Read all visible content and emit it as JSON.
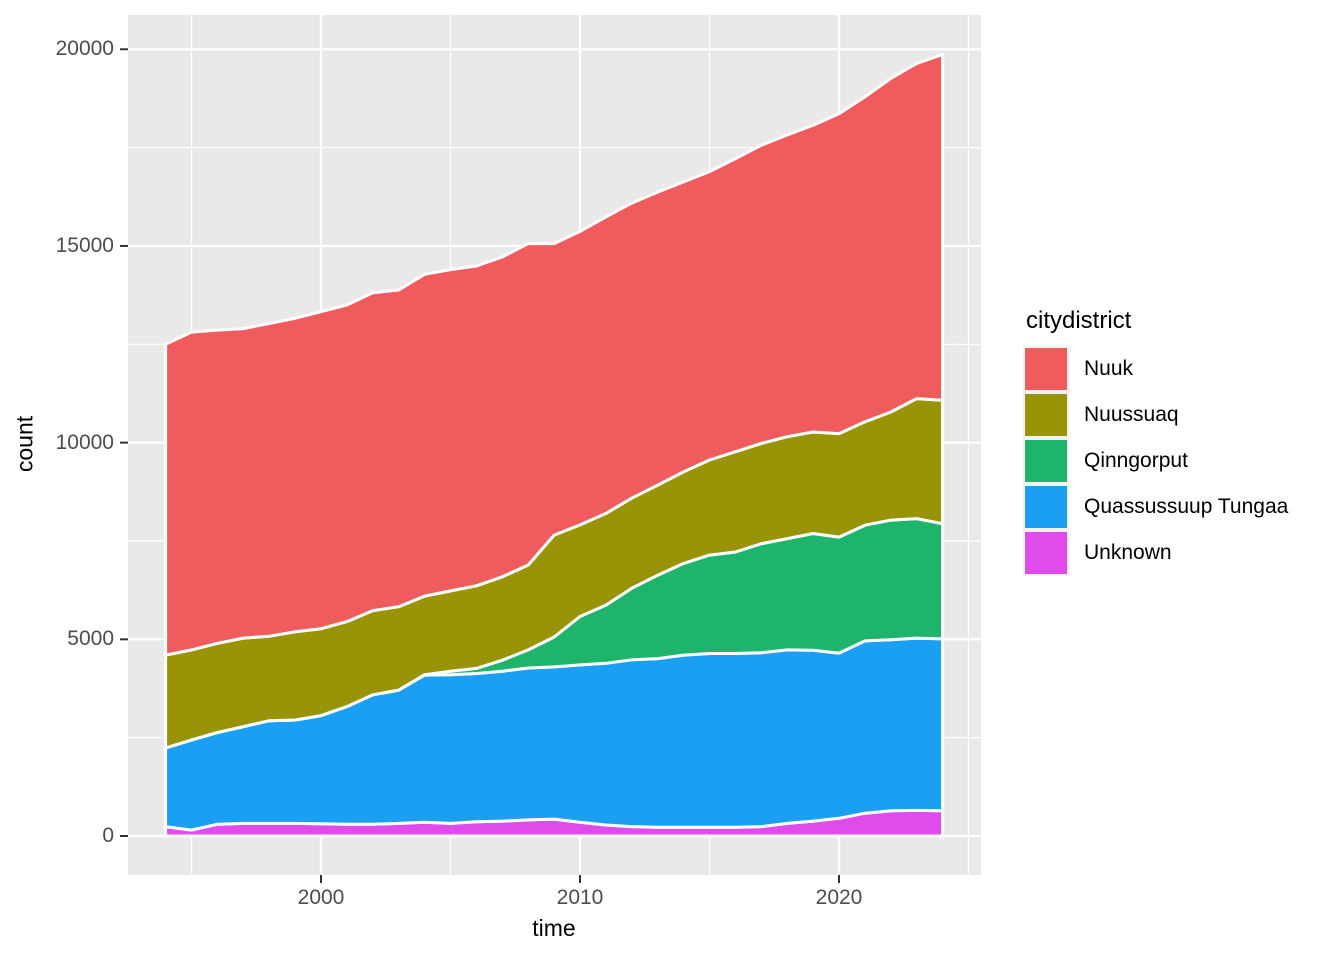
{
  "chart_data": {
    "type": "area",
    "stacked": true,
    "title": "",
    "xlabel": "time",
    "ylabel": "count",
    "legend_title": "citydistrict",
    "legend_position": "right",
    "grid": true,
    "x": [
      1994,
      1995,
      1996,
      1997,
      1998,
      1999,
      2000,
      2001,
      2002,
      2003,
      2004,
      2005,
      2006,
      2007,
      2008,
      2009,
      2010,
      2011,
      2012,
      2013,
      2014,
      2015,
      2016,
      2017,
      2018,
      2019,
      2020,
      2021,
      2022,
      2023,
      2024
    ],
    "series": [
      {
        "name": "Unknown",
        "color": "#E04CEB",
        "stack_position": "bottom",
        "values": [
          240,
          150,
          300,
          320,
          320,
          320,
          310,
          300,
          300,
          320,
          350,
          320,
          360,
          380,
          410,
          430,
          350,
          280,
          240,
          220,
          220,
          220,
          220,
          240,
          320,
          380,
          450,
          580,
          640,
          650,
          640
        ]
      },
      {
        "name": "Quassussuup Tungaa",
        "color": "#1A9FF2",
        "stack_position": "2",
        "values": [
          2000,
          2290,
          2330,
          2460,
          2610,
          2630,
          2750,
          2990,
          3290,
          3390,
          3740,
          3780,
          3770,
          3810,
          3860,
          3870,
          4000,
          4110,
          4240,
          4290,
          4380,
          4420,
          4420,
          4420,
          4410,
          4340,
          4200,
          4380,
          4350,
          4380,
          4370
        ]
      },
      {
        "name": "Qinngorput",
        "color": "#1EB46B",
        "stack_position": "3",
        "values": [
          0,
          0,
          0,
          0,
          0,
          0,
          0,
          0,
          0,
          0,
          10,
          90,
          130,
          280,
          460,
          760,
          1230,
          1480,
          1820,
          2120,
          2330,
          2500,
          2580,
          2770,
          2830,
          2970,
          2950,
          2940,
          3040,
          3040,
          2930
        ]
      },
      {
        "name": "Nuussuaq",
        "color": "#999307",
        "stack_position": "4",
        "values": [
          2360,
          2290,
          2270,
          2250,
          2150,
          2240,
          2210,
          2160,
          2140,
          2120,
          2000,
          2040,
          2100,
          2120,
          2160,
          2590,
          2330,
          2330,
          2290,
          2290,
          2330,
          2420,
          2550,
          2550,
          2590,
          2580,
          2630,
          2630,
          2750,
          3050,
          3140
        ]
      },
      {
        "name": "Nuuk",
        "color": "#F05B5D",
        "stack_position": "top",
        "values": [
          7900,
          8080,
          7960,
          7870,
          7950,
          7970,
          8060,
          8050,
          8080,
          8050,
          8180,
          8170,
          8130,
          8130,
          8170,
          7410,
          7460,
          7540,
          7500,
          7450,
          7370,
          7330,
          7450,
          7580,
          7670,
          7800,
          8130,
          8260,
          8480,
          8520,
          8790
        ]
      }
    ],
    "legend_order_top_to_bottom": [
      "Nuuk",
      "Nuussuaq",
      "Qinngorput",
      "Quassussuup Tungaa",
      "Unknown"
    ],
    "x_ticks": {
      "major": [
        2000,
        2010,
        2020
      ],
      "minor": [
        1995,
        2005,
        2015,
        2025
      ],
      "labels": [
        "2000",
        "2010",
        "2020"
      ]
    },
    "y_ticks": {
      "major": [
        0,
        5000,
        10000,
        15000,
        20000
      ],
      "minor": [
        2500,
        7500,
        12500,
        17500
      ],
      "labels": [
        "0",
        "5000",
        "10000",
        "15000",
        "20000"
      ]
    },
    "xlim": [
      1992.5,
      2025.5
    ],
    "ylim": [
      -990,
      20870
    ],
    "styles": {
      "panel_bg": "#E9E9E9",
      "grid_color": "#FFFFFF",
      "area_outline": "#FFFFFF",
      "tick_mark_color": "#333333",
      "tick_label_color": "#4D4D4D",
      "axis_title_color": "#000000"
    }
  }
}
